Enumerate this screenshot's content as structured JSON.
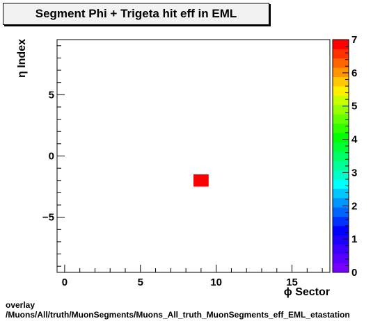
{
  "chart_data": {
    "type": "heatmap",
    "title": "Segment Phi + Trigeta hit eff in EML",
    "xlabel": "ϕ Sector",
    "ylabel": "η Index",
    "xlim": [
      -0.5,
      17.5
    ],
    "ylim": [
      -9.5,
      9.5
    ],
    "x_ticks": [
      0,
      5,
      10,
      15
    ],
    "y_ticks": [
      -5,
      0,
      5
    ],
    "x_tick_labels": [
      "0",
      "5",
      "10",
      "15"
    ],
    "y_tick_labels": [
      "−5",
      "0",
      "5"
    ],
    "cells": [
      {
        "x": 9,
        "y": -2,
        "value": 7
      }
    ],
    "z_range": [
      0,
      7
    ],
    "z_ticks": [
      0,
      1,
      2,
      3,
      4,
      5,
      6,
      7
    ],
    "z_tick_labels": [
      "0",
      "1",
      "2",
      "3",
      "4",
      "5",
      "6",
      "7"
    ],
    "grid": false,
    "legend": "color scale on the right",
    "palette": [
      "#7700ff",
      "#5a00ff",
      "#3c00ff",
      "#1e00ff",
      "#0000ff",
      "#0032ff",
      "#0064ff",
      "#0096ff",
      "#00c8ff",
      "#00ffff",
      "#00ffc8",
      "#00ff96",
      "#00ff64",
      "#00ff32",
      "#00ff00",
      "#32ff00",
      "#64ff00",
      "#96ff00",
      "#c8ff00",
      "#fff000",
      "#ffc800",
      "#ff9600",
      "#ff6400",
      "#ff3200",
      "#ff0000"
    ]
  },
  "footer": {
    "line1": "overlay",
    "line2": "/Muons/All/truth/MuonSegments/Muons_All_truth_MuonSegments_eff_EML_etastation"
  }
}
